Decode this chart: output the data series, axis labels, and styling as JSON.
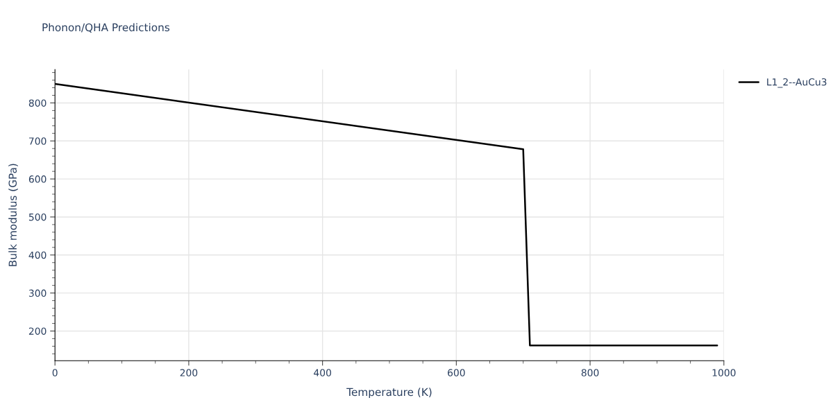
{
  "chart_data": {
    "type": "line",
    "title": "Phonon/QHA Predictions",
    "xlabel": "Temperature (K)",
    "ylabel": "Bulk modulus (GPa)",
    "x": [
      0,
      700,
      710,
      990
    ],
    "series": [
      {
        "name": "L1_2--AuCu3",
        "color": "#000000",
        "values": [
          850,
          678,
          162,
          162
        ]
      }
    ],
    "xlim": [
      0,
      1000
    ],
    "ylim": [
      122,
      888
    ],
    "xticks": [
      0,
      {
        "value": 50,
        "label": null
      },
      {
        "value": 100,
        "label": null
      },
      {
        "value": 150,
        "label": null
      },
      200,
      {
        "value": 250,
        "label": null
      },
      {
        "value": 300,
        "label": null
      },
      {
        "value": 350,
        "label": null
      },
      400,
      {
        "value": 450,
        "label": null
      },
      {
        "value": 500,
        "label": null
      },
      {
        "value": 550,
        "label": null
      },
      600,
      {
        "value": 650,
        "label": null
      },
      {
        "value": 700,
        "label": null
      },
      {
        "value": 750,
        "label": null
      },
      800,
      {
        "value": 850,
        "label": null
      },
      {
        "value": 900,
        "label": null
      },
      {
        "value": 950,
        "label": null
      },
      1000
    ],
    "yticks": [
      {
        "value": 140,
        "label": null
      },
      {
        "value": 160,
        "label": null
      },
      {
        "value": 180,
        "label": null
      },
      200,
      {
        "value": 220,
        "label": null
      },
      {
        "value": 240,
        "label": null
      },
      {
        "value": 260,
        "label": null
      },
      {
        "value": 280,
        "label": null
      },
      300,
      {
        "value": 320,
        "label": null
      },
      {
        "value": 340,
        "label": null
      },
      {
        "value": 360,
        "label": null
      },
      {
        "value": 380,
        "label": null
      },
      400,
      {
        "value": 420,
        "label": null
      },
      {
        "value": 440,
        "label": null
      },
      {
        "value": 460,
        "label": null
      },
      {
        "value": 480,
        "label": null
      },
      500,
      {
        "value": 520,
        "label": null
      },
      {
        "value": 540,
        "label": null
      },
      {
        "value": 560,
        "label": null
      },
      {
        "value": 580,
        "label": null
      },
      600,
      {
        "value": 620,
        "label": null
      },
      {
        "value": 640,
        "label": null
      },
      {
        "value": 660,
        "label": null
      },
      {
        "value": 680,
        "label": null
      },
      700,
      {
        "value": 720,
        "label": null
      },
      {
        "value": 740,
        "label": null
      },
      {
        "value": 760,
        "label": null
      },
      {
        "value": 780,
        "label": null
      },
      800,
      {
        "value": 820,
        "label": null
      },
      {
        "value": 840,
        "label": null
      },
      {
        "value": 860,
        "label": null
      },
      {
        "value": 880,
        "label": null
      }
    ],
    "grid": true,
    "legend": "top right",
    "marker": "none",
    "line_style": "solid"
  }
}
